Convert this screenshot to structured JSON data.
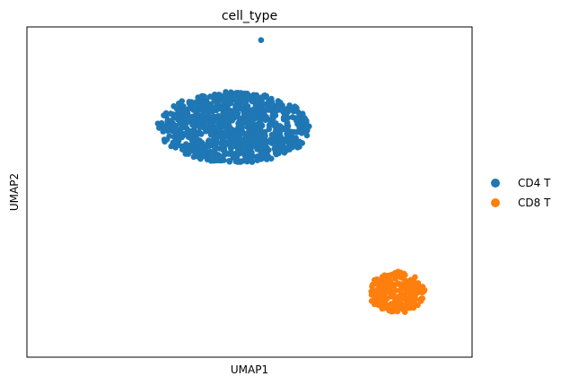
{
  "chart_data": {
    "type": "scatter",
    "title": "cell_type",
    "xlabel": "UMAP1",
    "ylabel": "UMAP2",
    "xlim": [
      0,
      100
    ],
    "ylim": [
      0,
      100
    ],
    "grid": false,
    "ticks": "none",
    "legend": {
      "placement": "right",
      "entries": [
        "CD4 T",
        "CD8 T"
      ]
    },
    "series": [
      {
        "name": "CD4 T",
        "color": "#1f77b4",
        "points": "dense cluster",
        "cluster": {
          "center": [
            46.5,
            69.5
          ],
          "spread": [
            17.5,
            11.0
          ],
          "count": 950
        },
        "outlier": [
          52.6,
          96.0
        ]
      },
      {
        "name": "CD8 T",
        "color": "#ff7f0e",
        "cluster": {
          "center": [
            83.0,
            19.5
          ],
          "spread": [
            6.5,
            6.5
          ],
          "count": 220
        }
      }
    ]
  }
}
